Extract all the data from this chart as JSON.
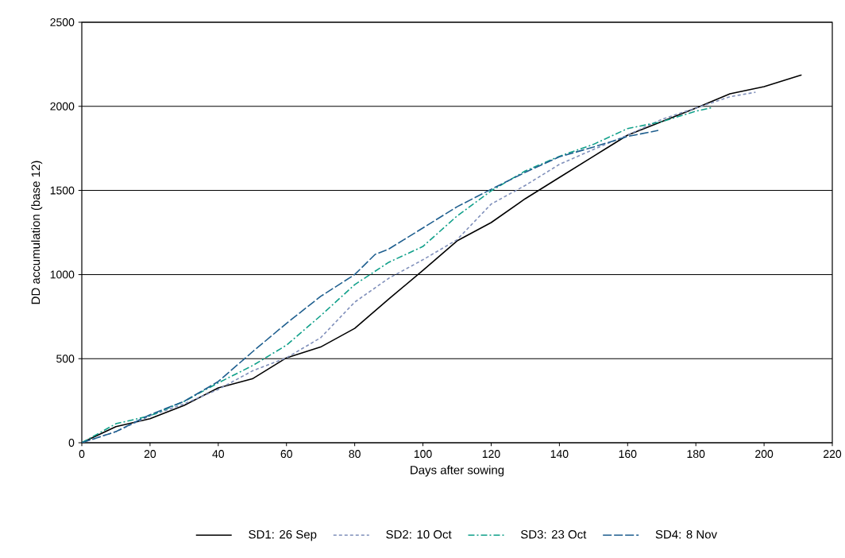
{
  "chart_data": {
    "type": "line",
    "xlabel": "Days after sowing",
    "ylabel": "DD accumulation (base 12)",
    "xlim": [
      0,
      220
    ],
    "xticks": [
      0,
      20,
      40,
      60,
      80,
      100,
      120,
      140,
      160,
      180,
      200,
      220
    ],
    "ylim": [
      0,
      2500
    ],
    "yticks": [
      0,
      500,
      1000,
      1500,
      2000,
      2500
    ],
    "grid": "y",
    "legend": "bottom",
    "marker": "none",
    "series": [
      {
        "name": "SD1: 26 Sep",
        "color": "#000000",
        "line_style": "solid",
        "x": [
          0,
          10,
          20,
          30,
          40,
          50,
          60,
          70,
          80,
          90,
          100,
          110,
          120,
          130,
          140,
          150,
          160,
          170,
          180,
          190,
          200,
          211
        ],
        "values": [
          0,
          96,
          143,
          222,
          326,
          380,
          505,
          569,
          680,
          855,
          1025,
          1200,
          1309,
          1451,
          1577,
          1703,
          1829,
          1909,
          1990,
          2075,
          2117,
          2187
        ]
      },
      {
        "name": "SD2: 10 Oct",
        "color": "#8090bb",
        "line_style": "dashed",
        "x": [
          0,
          10,
          20,
          30,
          40,
          50,
          60,
          70,
          80,
          90,
          100,
          110,
          120,
          130,
          140,
          150,
          160,
          170,
          180,
          190,
          197.5
        ],
        "values": [
          0,
          66,
          160,
          231,
          317,
          427,
          505,
          624,
          836,
          978,
          1088,
          1207,
          1419,
          1530,
          1655,
          1744,
          1829,
          1923,
          1990,
          2057,
          2084
        ]
      },
      {
        "name": "SD3: 23 Oct",
        "color": "#10a08a",
        "line_style": "dashdotted",
        "x": [
          0,
          10,
          20,
          30,
          40,
          50,
          60,
          70,
          80,
          90,
          100,
          110,
          120,
          130,
          140,
          150,
          160,
          170,
          180,
          185
        ],
        "values": [
          0,
          113,
          160,
          246,
          356,
          458,
          580,
          755,
          940,
          1073,
          1167,
          1348,
          1498,
          1616,
          1703,
          1774,
          1868,
          1909,
          1971,
          1994
        ]
      },
      {
        "name": "SD4: 8 Nov",
        "color": "#1f5f8f",
        "line_style": "longdashed",
        "x": [
          0,
          10,
          20,
          30,
          40,
          50,
          60,
          70,
          80,
          86,
          90,
          100,
          110,
          120,
          130,
          140,
          150,
          160,
          169
        ],
        "values": [
          0,
          66,
          167,
          246,
          364,
          540,
          710,
          870,
          1000,
          1120,
          1152,
          1277,
          1403,
          1507,
          1608,
          1700,
          1758,
          1821,
          1857
        ]
      }
    ]
  }
}
